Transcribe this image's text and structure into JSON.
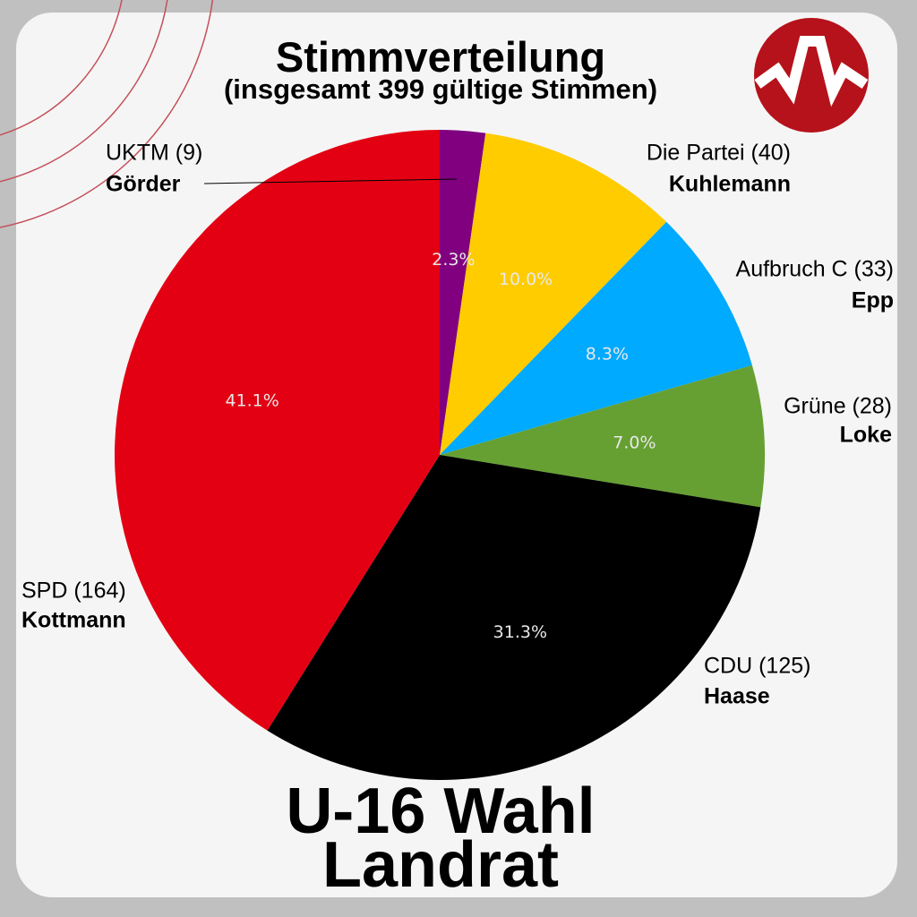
{
  "header": {
    "title": "Stimmverteilung",
    "subtitle": "(insgesamt 399 gültige Stimmen)"
  },
  "footer": {
    "line1": "U-16 Wahl",
    "line2": "Landrat"
  },
  "logo": {
    "icon": "wave-logo-icon",
    "color": "#b5121b"
  },
  "colors": {
    "background": "#c0c0c0",
    "card": "#f5f5f5",
    "decor_lines": "#c4505a"
  },
  "chart_data": {
    "type": "pie",
    "title": "Stimmverteilung",
    "subtitle": "(insgesamt 399 gültige Stimmen)",
    "total": 399,
    "start_angle_deg": 90,
    "direction": "clockwise",
    "slices": [
      {
        "party": "UKTM",
        "candidate": "Görder",
        "votes": 9,
        "percent": "2.3%",
        "color": "#800080",
        "party_label": "UKTM (9)"
      },
      {
        "party": "Die Partei",
        "candidate": "Kuhlemann",
        "votes": 40,
        "percent": "10.0%",
        "color": "#ffcc00",
        "party_label": "Die Partei (40)"
      },
      {
        "party": "Aufbruch C",
        "candidate": "Epp",
        "votes": 33,
        "percent": "8.3%",
        "color": "#00aaff",
        "party_label": "Aufbruch C (33)"
      },
      {
        "party": "Grüne",
        "candidate": "Loke",
        "votes": 28,
        "percent": "7.0%",
        "color": "#66a032",
        "party_label": "Grüne (28)"
      },
      {
        "party": "CDU",
        "candidate": "Haase",
        "votes": 125,
        "percent": "31.3%",
        "color": "#000000",
        "party_label": "CDU (125)"
      },
      {
        "party": "SPD",
        "candidate": "Kottmann",
        "votes": 164,
        "percent": "41.1%",
        "color": "#e30013",
        "party_label": "SPD (164)"
      }
    ]
  }
}
